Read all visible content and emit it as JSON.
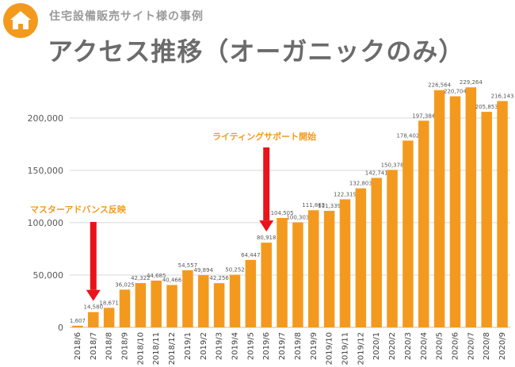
{
  "header": {
    "subtitle": "住宅設備販売サイト様の事例",
    "title": "アクセス推移（オーガニックのみ）",
    "icon": "home-icon",
    "accent": "#f39a1e"
  },
  "annotations": [
    {
      "label": "マスターアドバンス反映",
      "category": "2018/7",
      "color": "#e8141b"
    },
    {
      "label": "ライティングサポート開始",
      "category": "2019/6",
      "color": "#e8141b"
    }
  ],
  "chart_data": {
    "type": "bar",
    "categories": [
      "2018/6",
      "2018/7",
      "2018/8",
      "2018/9",
      "2018/10",
      "2018/11",
      "2018/12",
      "2019/1",
      "2019/2",
      "2019/3",
      "2019/4",
      "2019/5",
      "2019/6",
      "2019/7",
      "2019/8",
      "2019/9",
      "2019/10",
      "2019/11",
      "2019/12",
      "2020/1",
      "2020/2",
      "2020/3",
      "2020/4",
      "2020/5",
      "2020/6",
      "2020/7",
      "2020/8",
      "2020/9"
    ],
    "values": [
      1607,
      14580,
      18671,
      36025,
      42322,
      44685,
      40466,
      54557,
      49894,
      42256,
      50252,
      64447,
      80918,
      104505,
      100303,
      111863,
      111339,
      122319,
      132803,
      142741,
      150378,
      178402,
      197384,
      226564,
      220704,
      229264,
      205853,
      216143
    ],
    "value_labels": [
      "1,607",
      "14,580",
      "18,671",
      "36,025",
      "42,322",
      "44,685",
      "40,466",
      "54,557",
      "49,894",
      "42,256",
      "50,252",
      "64,447",
      "80,918",
      "104,505",
      "100,303",
      "111,863",
      "111,339",
      "122,319",
      "132,803",
      "142,741",
      "150,378",
      "178,402",
      "197,384",
      "226,564",
      "220,704",
      "229,264",
      "205,853",
      "216,143"
    ],
    "yticks": [
      0,
      50000,
      100000,
      150000,
      200000
    ],
    "ytick_labels": [
      "0",
      "50,000",
      "100,000",
      "150,000",
      "200,000"
    ],
    "ylim": [
      0,
      240000
    ],
    "grid": true,
    "bar_color": "#f39a1e",
    "grid_color": "#d9d9d9"
  }
}
